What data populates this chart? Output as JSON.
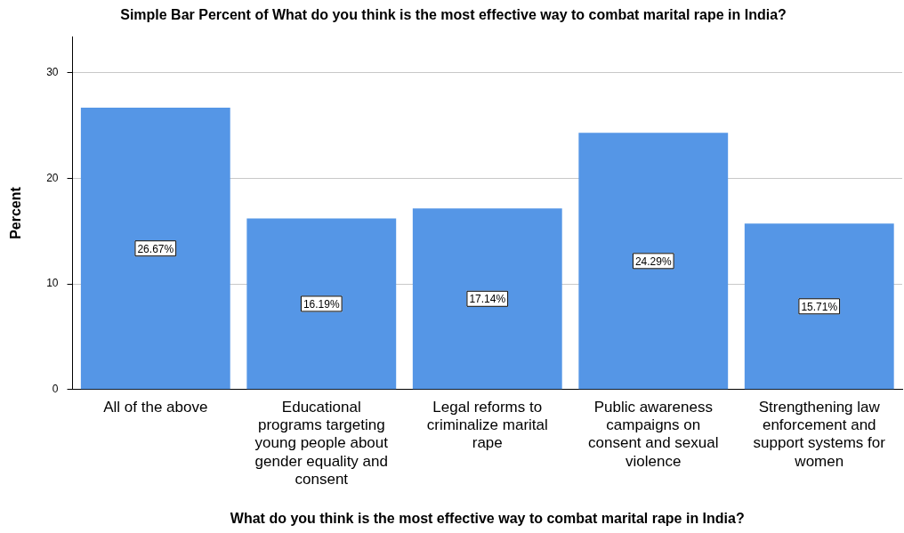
{
  "chart_data": {
    "type": "bar",
    "title": "Simple Bar Percent of What do you think is the most effective way to combat marital rape in India?",
    "xlabel": "What do you think is the most effective way to combat marital rape in India?",
    "ylabel": "Percent",
    "categories": [
      "All of the above",
      "Educational programs targeting young people about gender equality and consent",
      "Legal reforms to criminalize marital rape",
      "Public awareness campaigns on consent and sexual violence",
      "Strengthening law enforcement and support systems for women"
    ],
    "values": [
      26.67,
      16.19,
      17.14,
      24.29,
      15.71
    ],
    "value_labels": [
      "26.67%",
      "16.19%",
      "17.14%",
      "24.29%",
      "15.71%"
    ],
    "color": "#5596e6",
    "ylim": [
      0,
      33.4
    ],
    "yticks": [
      0,
      10,
      20,
      30
    ],
    "grid": "y",
    "legend": false
  }
}
